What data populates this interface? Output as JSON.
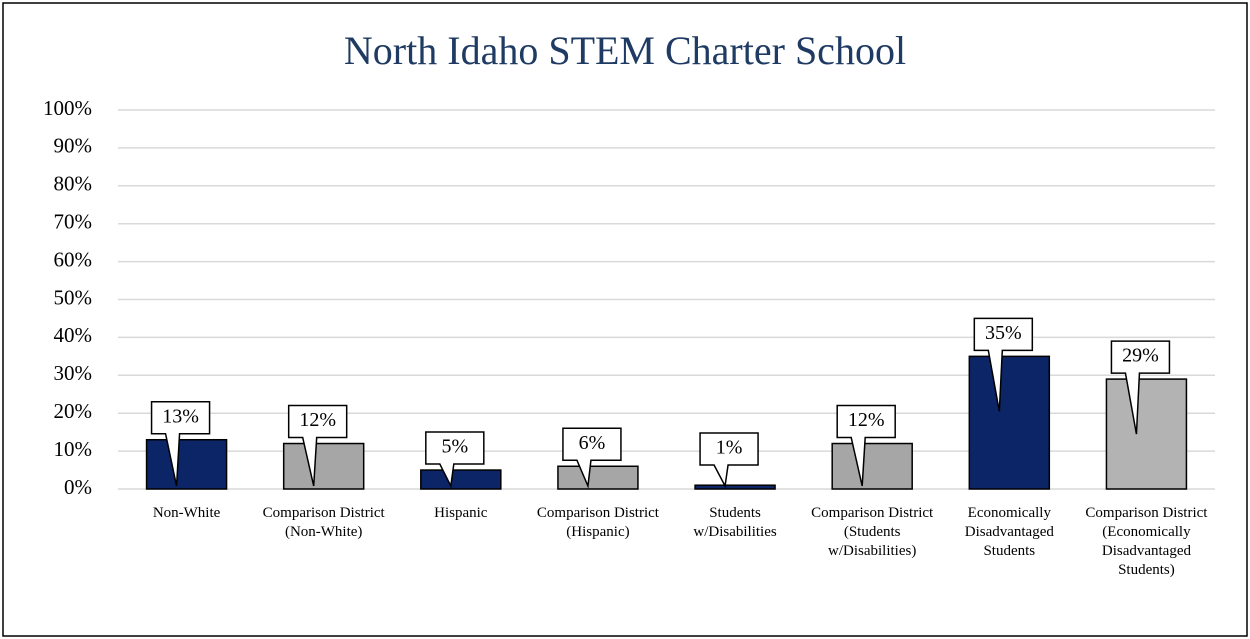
{
  "chart_data": {
    "type": "bar",
    "title": "North Idaho STEM Charter School",
    "categories": [
      "Non-White",
      "Comparison District (Non-White)",
      "Hispanic",
      "Comparison District (Hispanic)",
      "Students w/Disabilities",
      "Comparison District (Students w/Disabilities)",
      "Economically Disadvantaged Students",
      "Comparison District (Economically Disadvantaged Students)"
    ],
    "values": [
      13,
      12,
      5,
      6,
      1,
      12,
      35,
      29
    ],
    "value_labels": [
      "13%",
      "12%",
      "5%",
      "6%",
      "1%",
      "12%",
      "35%",
      "29%"
    ],
    "colors": [
      "#0c2566",
      "#a6a6a6",
      "#0c2566",
      "#a6a6a6",
      "#0c2566",
      "#a6a6a6",
      "#0c2566",
      "#b3b3b3"
    ],
    "ylim": [
      0,
      100
    ],
    "yticks": [
      {
        "value": 0,
        "label": "0%"
      },
      {
        "value": 10,
        "label": "10%"
      },
      {
        "value": 20,
        "label": "20%"
      },
      {
        "value": 30,
        "label": "30%"
      },
      {
        "value": 40,
        "label": "40%"
      },
      {
        "value": 50,
        "label": "50%"
      },
      {
        "value": 60,
        "label": "60%"
      },
      {
        "value": 70,
        "label": "70%"
      },
      {
        "value": 80,
        "label": "80%"
      },
      {
        "value": 90,
        "label": "90%"
      },
      {
        "value": 100,
        "label": "100%"
      }
    ],
    "grid": true
  }
}
